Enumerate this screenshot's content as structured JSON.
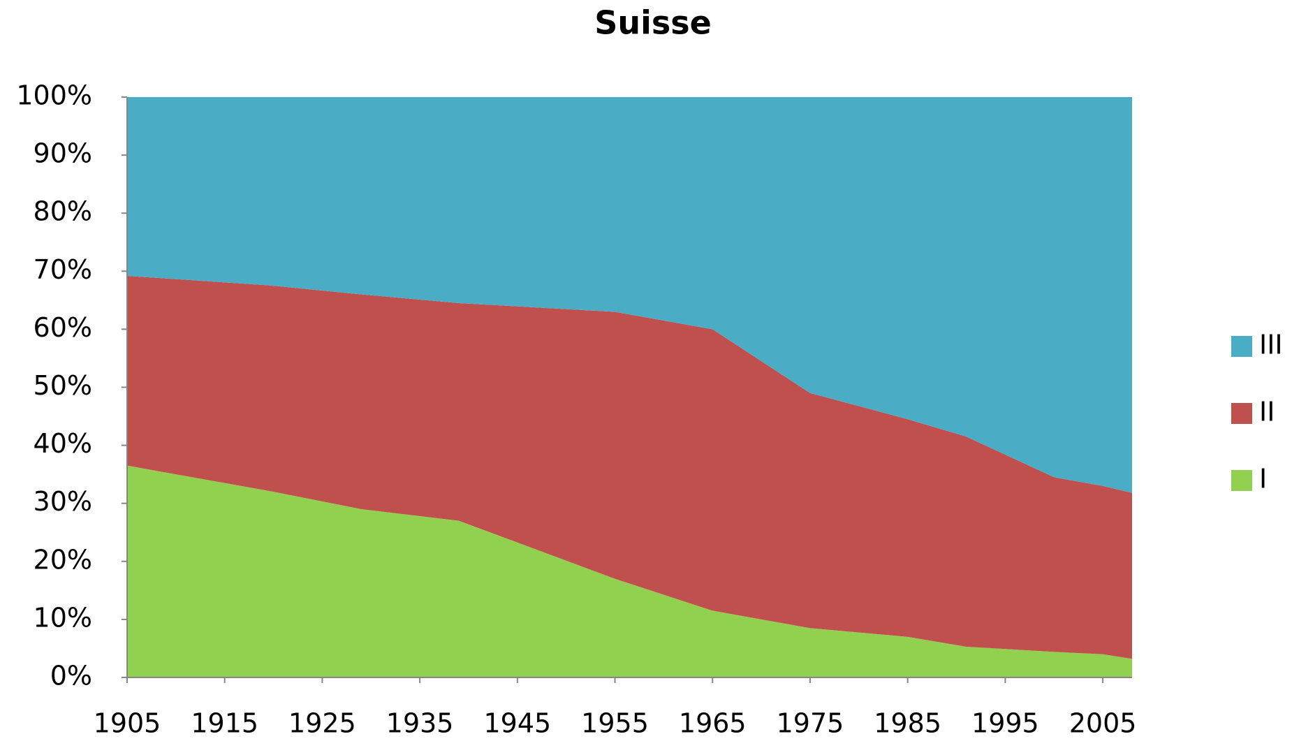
{
  "chart_data": {
    "type": "stacked_area",
    "title": "Suisse",
    "x": [
      1905,
      1920,
      1929,
      1939,
      1955,
      1965,
      1975,
      1985,
      1991,
      2000,
      2005,
      2008
    ],
    "series": [
      {
        "name": "I",
        "color": "#92d050",
        "values": [
          36.5,
          32,
          29,
          27,
          17,
          11.5,
          8.5,
          7,
          5.3,
          4.4,
          4,
          3.2
        ]
      },
      {
        "name": "II",
        "color": "#c0504d",
        "values": [
          32.7,
          35.5,
          37,
          37.5,
          46,
          48.5,
          40.5,
          37.5,
          36.2,
          30.1,
          29,
          28.6
        ]
      },
      {
        "name": "III",
        "color": "#4bacc6",
        "values": [
          30.8,
          32.5,
          34,
          35.5,
          37,
          40,
          51,
          55.5,
          58.5,
          65.5,
          67,
          68.2
        ]
      }
    ],
    "xlim": [
      1905,
      2008
    ],
    "xticks": [
      1905,
      1915,
      1925,
      1935,
      1945,
      1955,
      1965,
      1975,
      1985,
      1995,
      2005
    ],
    "ylim": [
      0,
      100
    ],
    "yticks": [
      {
        "value": 0,
        "label": "0%"
      },
      {
        "value": 10,
        "label": "10%"
      },
      {
        "value": 20,
        "label": "20%"
      },
      {
        "value": 30,
        "label": "30%"
      },
      {
        "value": 40,
        "label": "40%"
      },
      {
        "value": 50,
        "label": "50%"
      },
      {
        "value": 60,
        "label": "60%"
      },
      {
        "value": 70,
        "label": "70%"
      },
      {
        "value": 80,
        "label": "80%"
      },
      {
        "value": 90,
        "label": "90%"
      },
      {
        "value": 100,
        "label": "100%"
      }
    ],
    "legend": "right"
  }
}
